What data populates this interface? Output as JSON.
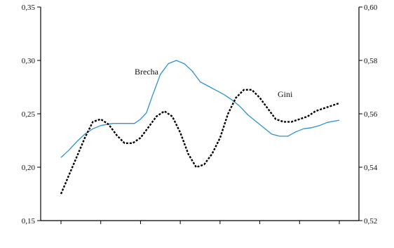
{
  "chart_data": {
    "type": "line",
    "title": "",
    "xlabel": "",
    "left_axis": {
      "ylim": [
        0.15,
        0.35
      ],
      "ticks": [
        "0,15",
        "0,20",
        "0,25",
        "0,30",
        "0,35"
      ]
    },
    "right_axis": {
      "ylim": [
        0.52,
        0.6
      ],
      "ticks": [
        "0,52",
        "0,54",
        "0,56",
        "0,58",
        "0,60"
      ]
    },
    "x_positions": 8,
    "grid": false,
    "legend": "inline labels",
    "series": [
      {
        "name": "Brecha",
        "axis": "left",
        "color": "#2b93d1",
        "style": "solid",
        "x": [
          0.0,
          0.2,
          0.4,
          0.6,
          0.8,
          1.0,
          1.3,
          1.5,
          1.7,
          1.85,
          2.0,
          2.15,
          2.3,
          2.5,
          2.7,
          2.9,
          3.1,
          3.3,
          3.5,
          3.7,
          3.9,
          4.1,
          4.3,
          4.5,
          4.7,
          4.9,
          5.1,
          5.3,
          5.5,
          5.7,
          5.9,
          6.1,
          6.3,
          6.5,
          6.7,
          7.0
        ],
        "values": [
          0.209,
          0.216,
          0.224,
          0.231,
          0.236,
          0.239,
          0.241,
          0.241,
          0.241,
          0.241,
          0.245,
          0.251,
          0.267,
          0.287,
          0.297,
          0.3,
          0.297,
          0.29,
          0.28,
          0.276,
          0.272,
          0.268,
          0.263,
          0.257,
          0.249,
          0.243,
          0.237,
          0.231,
          0.229,
          0.229,
          0.233,
          0.236,
          0.237,
          0.239,
          0.242,
          0.244
        ]
      },
      {
        "name": "Gini",
        "axis": "right",
        "color": "#000000",
        "style": "dashed",
        "x": [
          0.0,
          0.2,
          0.4,
          0.6,
          0.8,
          1.0,
          1.2,
          1.4,
          1.6,
          1.8,
          2.0,
          2.2,
          2.4,
          2.6,
          2.8,
          3.0,
          3.2,
          3.4,
          3.6,
          3.8,
          4.0,
          4.2,
          4.4,
          4.6,
          4.8,
          5.0,
          5.2,
          5.4,
          5.6,
          5.8,
          6.0,
          6.2,
          6.4,
          6.6,
          6.8,
          7.0
        ],
        "values": [
          0.53,
          0.537,
          0.544,
          0.551,
          0.557,
          0.558,
          0.556,
          0.552,
          0.549,
          0.549,
          0.551,
          0.555,
          0.559,
          0.561,
          0.559,
          0.553,
          0.545,
          0.54,
          0.541,
          0.545,
          0.551,
          0.56,
          0.566,
          0.569,
          0.569,
          0.566,
          0.562,
          0.558,
          0.557,
          0.557,
          0.558,
          0.559,
          0.561,
          0.562,
          0.563,
          0.564
        ]
      }
    ]
  }
}
